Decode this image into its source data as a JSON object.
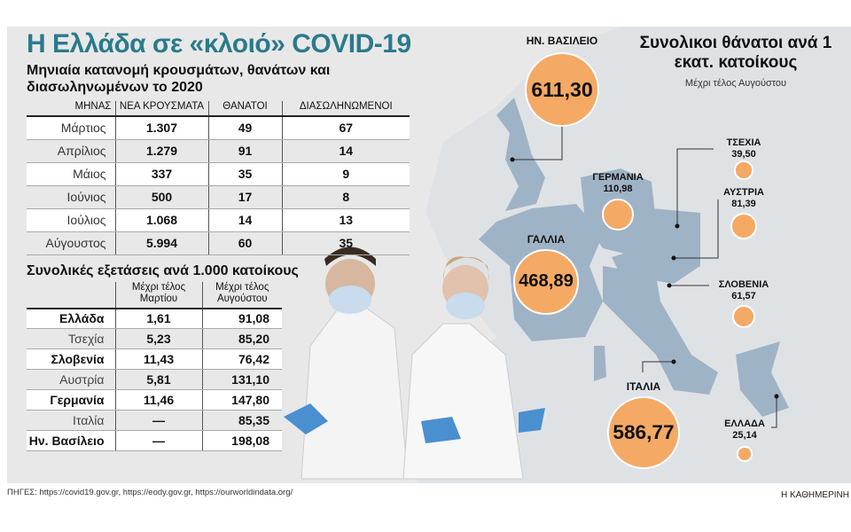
{
  "title": "Η Ελλάδα σε «κλοιό» COVID-19",
  "subtitle": "Μηνιαία κατανομή κρουσμάτων, θανάτων και διασωληνωμένων το 2020",
  "monthly": {
    "headers": [
      "ΜΗΝΑΣ",
      "ΝΕΑ ΚΡΟΥΣΜΑΤΑ",
      "ΘΑΝΑΤΟΙ",
      "ΔΙΑΣΩΛΗΝΩΜΕΝΟΙ"
    ],
    "rows": [
      [
        "Μάρτιος",
        "1.307",
        "49",
        "67"
      ],
      [
        "Απρίλιος",
        "1.279",
        "91",
        "14"
      ],
      [
        "Μάιος",
        "337",
        "35",
        "9"
      ],
      [
        "Ιούνιος",
        "500",
        "17",
        "8"
      ],
      [
        "Ιούλιος",
        "1.068",
        "14",
        "13"
      ],
      [
        "Αύγουστος",
        "5.994",
        "60",
        "35"
      ]
    ]
  },
  "tests": {
    "title": "Συνολικές εξετάσεις ανά 1.000 κατοίκους",
    "headers": [
      "",
      "Μέχρι τέλος Μαρτίου",
      "Μέχρι τέλος Αυγούστου"
    ],
    "rows": [
      [
        "Ελλάδα",
        "1,61",
        "91,08"
      ],
      [
        "Τσεχία",
        "5,23",
        "85,20"
      ],
      [
        "Σλοβενία",
        "11,43",
        "76,42"
      ],
      [
        "Αυστρία",
        "5,81",
        "131,10"
      ],
      [
        "Γερμανία",
        "11,46",
        "147,80"
      ],
      [
        "Ιταλία",
        "—",
        "85,35"
      ],
      [
        "Ην. Βασίλειο",
        "—",
        "198,08"
      ]
    ]
  },
  "map": {
    "title": "Συνολικοι θάνατοι ανά 1 εκατ. κατοίκους",
    "subtitle": "Μέχρι τέλος Αυγούστου",
    "bubble_color": "#f4a965",
    "land_highlight_color": "#9fb3c6",
    "countries": [
      {
        "name": "ΗΝ. ΒΑΣΙΛΕΙΟ",
        "value": "611,30"
      },
      {
        "name": "ΓΕΡΜΑΝΙΑ",
        "value": "110,98"
      },
      {
        "name": "ΓΑΛΛΙΑ",
        "value": "468,89"
      },
      {
        "name": "ΙΤΑΛΙΑ",
        "value": "586,77"
      },
      {
        "name": "ΤΣΕΧΙΑ",
        "value": "39,50"
      },
      {
        "name": "ΑΥΣΤΡΙΑ",
        "value": "81,39"
      },
      {
        "name": "ΣΛΟΒΕΝΙΑ",
        "value": "61,57"
      },
      {
        "name": "ΕΛΛΑΔΑ",
        "value": "25,14"
      }
    ]
  },
  "chart_data": [
    {
      "type": "table",
      "title": "Μηνιαία κατανομή κρουσμάτων, θανάτων και διασωληνωμένων το 2020",
      "columns": [
        "ΜΗΝΑΣ",
        "ΝΕΑ ΚΡΟΥΣΜΑΤΑ",
        "ΘΑΝΑΤΟΙ",
        "ΔΙΑΣΩΛΗΝΩΜΕΝΟΙ"
      ],
      "categories": [
        "Μάρτιος",
        "Απρίλιος",
        "Μάιος",
        "Ιούνιος",
        "Ιούλιος",
        "Αύγουστος"
      ],
      "series": [
        {
          "name": "ΝΕΑ ΚΡΟΥΣΜΑΤΑ",
          "values": [
            1307,
            1279,
            337,
            500,
            1068,
            5994
          ]
        },
        {
          "name": "ΘΑΝΑΤΟΙ",
          "values": [
            49,
            91,
            35,
            17,
            14,
            60
          ]
        },
        {
          "name": "ΔΙΑΣΩΛΗΝΩΜΕΝΟΙ",
          "values": [
            67,
            14,
            9,
            8,
            13,
            35
          ]
        }
      ]
    },
    {
      "type": "table",
      "title": "Συνολικές εξετάσεις ανά 1.000 κατοίκους",
      "categories": [
        "Ελλάδα",
        "Τσεχία",
        "Σλοβενία",
        "Αυστρία",
        "Γερμανία",
        "Ιταλία",
        "Ην. Βασίλειο"
      ],
      "series": [
        {
          "name": "Μέχρι τέλος Μαρτίου",
          "values": [
            1.61,
            5.23,
            11.43,
            5.81,
            11.46,
            null,
            null
          ]
        },
        {
          "name": "Μέχρι τέλος Αυγούστου",
          "values": [
            91.08,
            85.2,
            76.42,
            131.1,
            147.8,
            85.35,
            198.08
          ]
        }
      ]
    },
    {
      "type": "scatter",
      "title": "Συνολικοι θάνατοι ανά 1 εκατ. κατοίκους",
      "subtitle": "Μέχρι τέλος Αυγούστου",
      "categories": [
        "ΗΝ. ΒΑΣΙΛΕΙΟ",
        "ΓΕΡΜΑΝΙΑ",
        "ΓΑΛΛΙΑ",
        "ΙΤΑΛΙΑ",
        "ΤΣΕΧΙΑ",
        "ΑΥΣΤΡΙΑ",
        "ΣΛΟΒΕΝΙΑ",
        "ΕΛΛΑΔΑ"
      ],
      "values": [
        611.3,
        110.98,
        468.89,
        586.77,
        39.5,
        81.39,
        61.57,
        25.14
      ]
    }
  ],
  "sources": "ΠΗΓΕΣ: https://covid19.gov.gr, https://eody.gov.gr, https://ourworldindata.org/",
  "brand": "Η ΚΑΘΗΜΕΡΙΝΗ"
}
